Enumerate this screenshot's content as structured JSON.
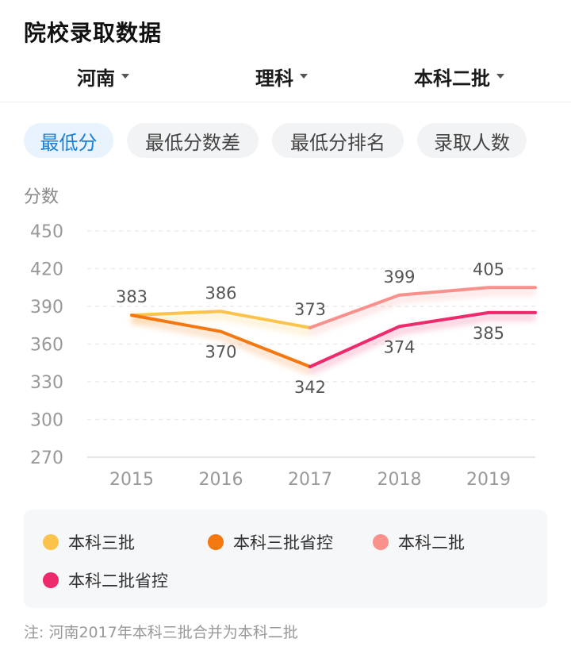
{
  "page_title": "院校录取数据",
  "filters": {
    "province": "河南",
    "subject": "理科",
    "batch": "本科二批"
  },
  "tabs": [
    {
      "label": "最低分",
      "active": true
    },
    {
      "label": "最低分数差",
      "active": false
    },
    {
      "label": "最低分排名",
      "active": false
    },
    {
      "label": "录取人数",
      "active": false
    }
  ],
  "chart_data": {
    "type": "line",
    "ylabel": "分数",
    "xlabel": "",
    "ylim": [
      270,
      450
    ],
    "yticks": [
      270,
      300,
      330,
      360,
      390,
      420,
      450
    ],
    "grid": true,
    "legend_position": "bottom",
    "categories": [
      "2015",
      "2016",
      "2017",
      "2018",
      "2019"
    ],
    "series": [
      {
        "name": "本科三批",
        "color": "#fbc34a",
        "x": [
          "2015",
          "2016",
          "2017"
        ],
        "values": [
          383,
          386,
          373
        ]
      },
      {
        "name": "本科三批省控",
        "color": "#f5770f",
        "x": [
          "2015",
          "2016",
          "2017"
        ],
        "values": [
          383,
          370,
          342
        ]
      },
      {
        "name": "本科二批",
        "color": "#f9908c",
        "x": [
          "2017",
          "2018",
          "2019"
        ],
        "values": [
          373,
          399,
          405
        ]
      },
      {
        "name": "本科二批省控",
        "color": "#ee2a6c",
        "x": [
          "2017",
          "2018",
          "2019"
        ],
        "values": [
          342,
          374,
          385
        ]
      }
    ]
  },
  "note": "注: 河南2017年本科三批合并为本科二批"
}
